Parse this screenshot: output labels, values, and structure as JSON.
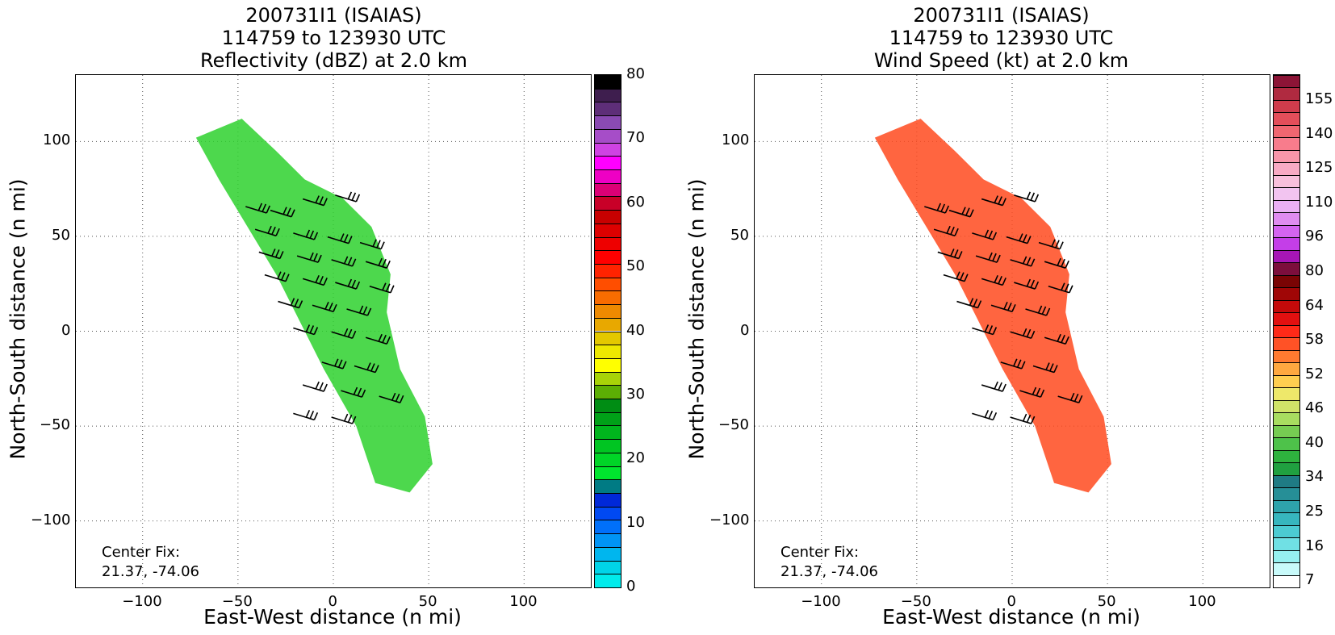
{
  "chart_data": [
    {
      "type": "heatmap",
      "title": [
        "200731I1 (ISAIAS)",
        "114759 to 123930 UTC",
        "Reflectivity (dBZ) at 2.0 km"
      ],
      "xlabel": "East-West distance (n mi)",
      "ylabel": "North-South distance (n mi)",
      "xlim": [
        -135,
        135
      ],
      "ylim": [
        -135,
        135
      ],
      "xticks": [
        "−100",
        "−50",
        "0",
        "50",
        "100"
      ],
      "yticks": [
        "100",
        "50",
        "0",
        "−50",
        "−100"
      ],
      "grid": true,
      "annotation": [
        "Center Fix:",
        "21.37, -74.06"
      ],
      "colorbar": {
        "range": [
          0,
          80
        ],
        "ticks": [
          "0",
          "10",
          "20",
          "30",
          "40",
          "50",
          "60",
          "70",
          "80"
        ],
        "colors": [
          "#00ebeb",
          "#00d4e8",
          "#00b6ee",
          "#0094f5",
          "#0070fa",
          "#0049f2",
          "#0028d8",
          "#007b84",
          "#00e62e",
          "#00d527",
          "#00c522",
          "#00b51d",
          "#00a118",
          "#008d14",
          "#5cae04",
          "#a8d308",
          "#ffff00",
          "#eee800",
          "#e4c800",
          "#e8a800",
          "#ee8a00",
          "#f86c00",
          "#ff4e00",
          "#ff2300",
          "#ff0000",
          "#ee0000",
          "#dd0000",
          "#c80000",
          "#c80028",
          "#dc0076",
          "#ee00c4",
          "#ff00ff",
          "#cf43e3",
          "#a64dc8",
          "#8a4ab2",
          "#5e2e78",
          "#3e1e4e",
          "#000000"
        ]
      },
      "storm_mask_fill": "#2ed12e"
    },
    {
      "type": "heatmap",
      "title": [
        "200731I1 (ISAIAS)",
        "114759 to 123930 UTC",
        "Wind Speed (kt) at 2.0 km"
      ],
      "xlabel": "East-West distance (n mi)",
      "ylabel": "North-South distance (n mi)",
      "xlim": [
        -135,
        135
      ],
      "ylim": [
        -135,
        135
      ],
      "xticks": [
        "−100",
        "−50",
        "0",
        "50",
        "100"
      ],
      "yticks": [
        "100",
        "50",
        "0",
        "−50",
        "−100"
      ],
      "grid": true,
      "annotation": [
        "Center Fix:",
        "21.37, -74.06"
      ],
      "colorbar": {
        "ticks": [
          "7",
          "16",
          "25",
          "34",
          "40",
          "46",
          "52",
          "58",
          "64",
          "80",
          "96",
          "110",
          "125",
          "140",
          "155"
        ],
        "colors": [
          "#ffffff",
          "#c8fafa",
          "#96f0f0",
          "#70e0e4",
          "#4ccbd2",
          "#37b6be",
          "#2ea3ab",
          "#268f97",
          "#1f7b84",
          "#20a040",
          "#2eb23e",
          "#4ec24a",
          "#76cc52",
          "#a8dd60",
          "#d0e368",
          "#eee86a",
          "#ffce50",
          "#ffa840",
          "#ff7a30",
          "#ff5226",
          "#ff2a18",
          "#e21010",
          "#c40a0a",
          "#a00606",
          "#7a0404",
          "#7c0e3c",
          "#a616b6",
          "#c43ee8",
          "#d464f0",
          "#e08cf0",
          "#eab0f4",
          "#f2c4f0",
          "#f8c0dc",
          "#f8aac4",
          "#f896aa",
          "#f87c8c",
          "#f06670",
          "#e44e5a",
          "#d03c4c",
          "#b02a40",
          "#8c1436"
        ]
      },
      "storm_mask_fill": "#ff4a1e"
    }
  ]
}
